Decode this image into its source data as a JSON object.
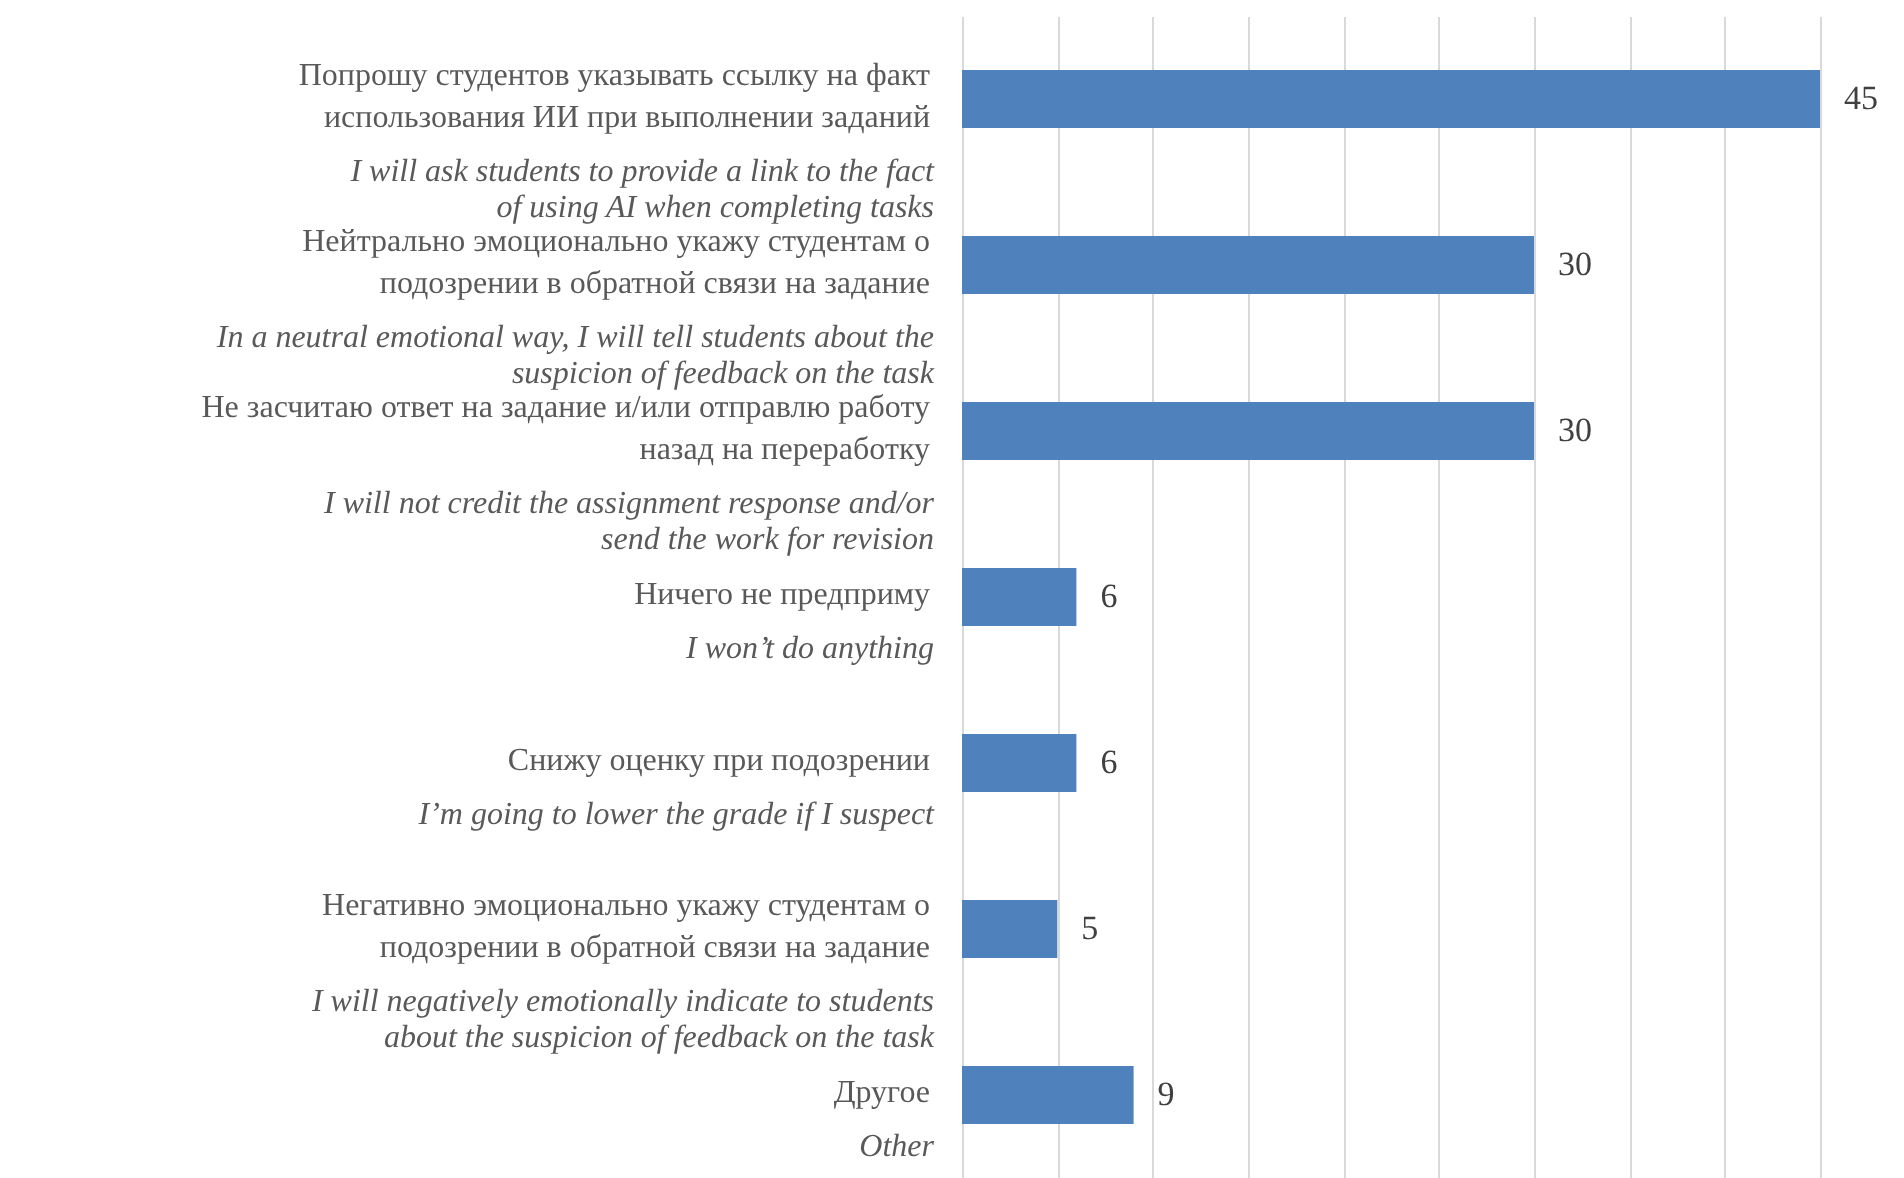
{
  "chart_data": {
    "type": "bar",
    "orientation": "horizontal",
    "categories": [
      "Попрошу студентов указывать ссылку на факт\nиспользования ИИ при выполнении заданий",
      "Нейтрально эмоционально укажу студентам о\nподозрении в обратной связи на задание",
      "Не засчитаю ответ на задание и/или отправлю работу\nназад на переработку",
      "Ничего не предприму",
      "Снижу оценку при подозрении",
      "Негативно эмоционально укажу студентам о\nподозрении в обратной связи на задание",
      "Другое"
    ],
    "values": [
      45,
      30,
      30,
      6,
      6,
      5,
      9
    ],
    "color": "#4f81bd",
    "annotations": [
      "I will ask students to provide a link to the fact\nof using AI when completing tasks",
      "In a neutral emotional way, I will tell students about the\nsuspicion of feedback on the task",
      "I will not credit the assignment response and/or\nsend the work for revision",
      "I won’t do anything",
      "I’m going to lower the grade if I suspect",
      "I will negatively emotionally indicate to students\nabout the suspicion of feedback on the task",
      "Other"
    ],
    "xlim": [
      0,
      45
    ],
    "xticks": [
      {
        "value": 0,
        "label": null
      },
      {
        "value": 5,
        "label": null
      },
      {
        "value": 10,
        "label": null
      },
      {
        "value": 15,
        "label": null
      },
      {
        "value": 20,
        "label": null
      },
      {
        "value": 25,
        "label": null
      },
      {
        "value": 30,
        "label": null
      },
      {
        "value": 35,
        "label": null
      },
      {
        "value": 40,
        "label": null
      },
      {
        "value": 45,
        "label": null
      }
    ],
    "grid": "x",
    "data_labels": true,
    "tick_labels": "y"
  }
}
